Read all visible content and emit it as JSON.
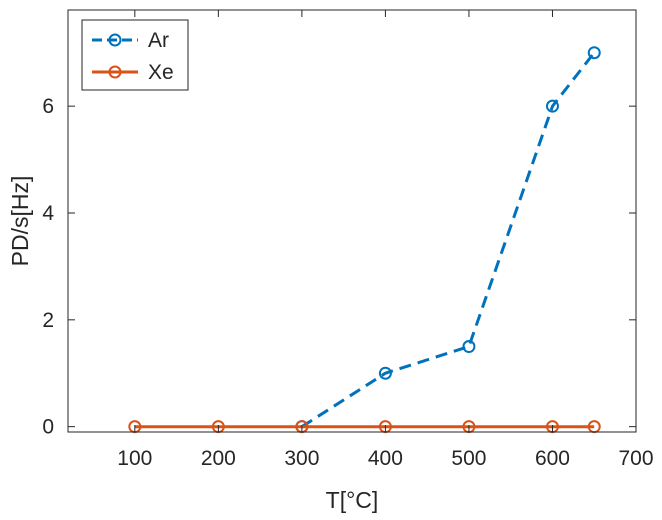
{
  "chart_data": {
    "type": "line",
    "xlabel": "T[°C]",
    "ylabel": "PD/s[Hz]",
    "xlim": [
      20,
      700
    ],
    "ylim": [
      -0.1,
      7.8
    ],
    "xticks": [
      100,
      200,
      300,
      400,
      500,
      600,
      700
    ],
    "xtick_labels": [
      "100",
      "200",
      "300",
      "400",
      "500",
      "600",
      "700"
    ],
    "yticks": [
      0,
      2,
      4,
      6
    ],
    "ytick_labels": [
      "0",
      "2",
      "4",
      "6"
    ],
    "grid": false,
    "legend_position": "top-left",
    "series": [
      {
        "name": "Ar",
        "line_style": "dashed",
        "marker": "circle",
        "color": "#0072BD",
        "x": [
          300,
          400,
          500,
          600,
          650
        ],
        "y": [
          0,
          1,
          1.5,
          6,
          7
        ]
      },
      {
        "name": "Xe",
        "line_style": "solid",
        "marker": "circle",
        "color": "#D95319",
        "x": [
          100,
          200,
          300,
          400,
          500,
          600,
          650
        ],
        "y": [
          0,
          0,
          0,
          0,
          0,
          0,
          0
        ]
      }
    ]
  }
}
